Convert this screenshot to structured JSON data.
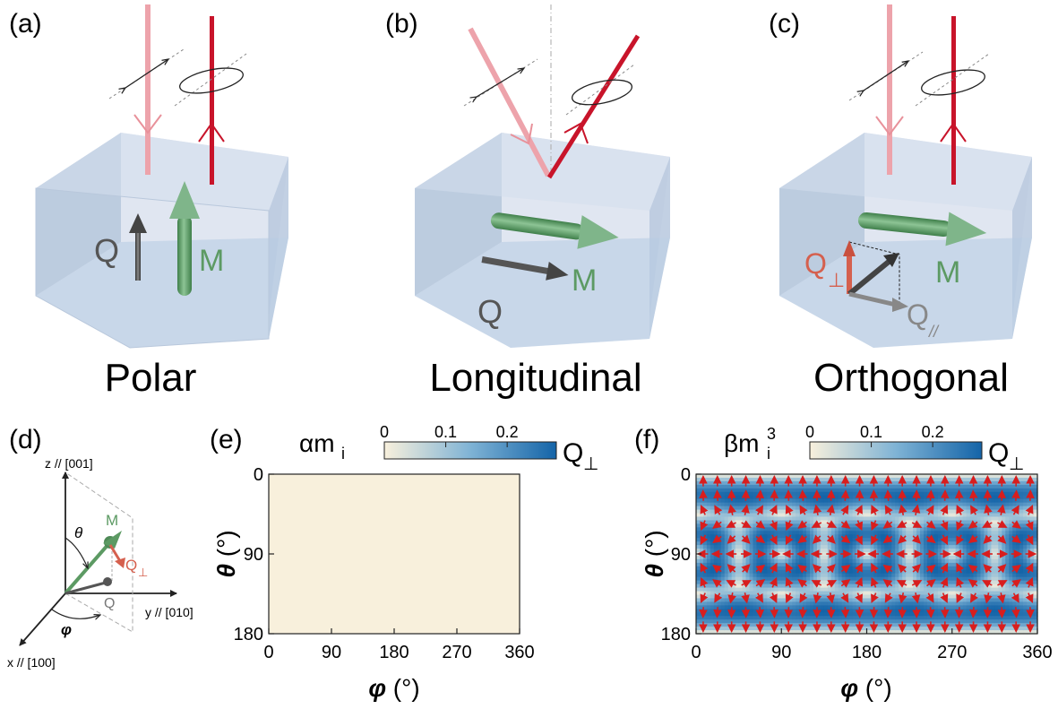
{
  "panels": {
    "a": {
      "label": "(a)",
      "caption": "Polar",
      "q": "Q",
      "m": "M"
    },
    "b": {
      "label": "(b)",
      "caption": "Longitudinal",
      "q": "Q",
      "m": "M"
    },
    "c": {
      "label": "(c)",
      "caption": "Orthogonal",
      "q_perp": "Q",
      "q_perp_sub": "⊥",
      "q_par": "Q",
      "q_par_sub": "//",
      "m": "M"
    },
    "d": {
      "label": "(d)",
      "z_axis": "z // [001]",
      "y_axis": "y // [010]",
      "x_axis": "x // [100]",
      "m": "M",
      "q_perp": "Q",
      "q_perp_sub": "⊥",
      "q": "Q",
      "theta": "θ",
      "phi": "φ"
    },
    "e": {
      "label": "(e)",
      "term": "αm",
      "term_sub": "i"
    },
    "f": {
      "label": "(f)",
      "term": "βm",
      "term_sub": "i",
      "term_sup": "3"
    }
  },
  "colorbar": {
    "ticks": [
      "0",
      "0.1",
      "0.2"
    ],
    "tick_values": [
      0,
      0.1,
      0.2
    ],
    "range": [
      0,
      0.28
    ],
    "label": "Q",
    "label_sub": "⊥",
    "color_low": "#f8f0dc",
    "color_high": "#1464a8"
  },
  "chart_data": [
    {
      "type": "heatmap",
      "panel": "e",
      "xlabel": "φ (°)",
      "ylabel": "θ (°)",
      "xticks": [
        "0",
        "90",
        "180",
        "270",
        "360"
      ],
      "yticks": [
        "0",
        "90",
        "180"
      ],
      "xlim": [
        0,
        360
      ],
      "ylim": [
        180,
        0
      ],
      "values": "uniform 0"
    },
    {
      "type": "heatmap",
      "panel": "f",
      "xlabel": "φ (°)",
      "ylabel": "θ (°)",
      "xticks": [
        "0",
        "90",
        "180",
        "270",
        "360"
      ],
      "yticks": [
        "0",
        "90",
        "180"
      ],
      "xlim": [
        0,
        360
      ],
      "ylim": [
        180,
        0
      ],
      "arrows": true,
      "arrow_color": "#d81e1e"
    }
  ],
  "colors": {
    "box": "#b7c7dd",
    "m_arrow": "#5c9a63",
    "q_arrow": "#5a5a5a",
    "q_perp": "#d5604e",
    "beam_incident": "#e8919a",
    "beam_reflected": "#c8142a"
  }
}
